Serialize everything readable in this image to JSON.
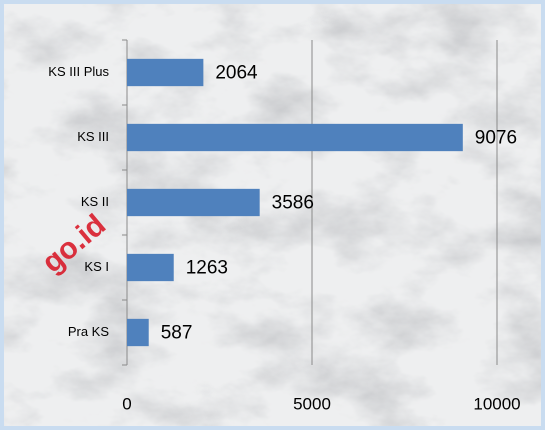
{
  "chart_data": {
    "type": "bar",
    "orientation": "horizontal",
    "categories": [
      "KS III Plus",
      "KS III",
      "KS II",
      "KS I",
      "Pra KS"
    ],
    "values": [
      2064,
      9076,
      3586,
      1263,
      587
    ],
    "color": "#4f81bd",
    "xlim": [
      0,
      10000
    ],
    "xticks": [
      0,
      5000,
      10000
    ],
    "grid": true,
    "watermark": "go.id"
  }
}
